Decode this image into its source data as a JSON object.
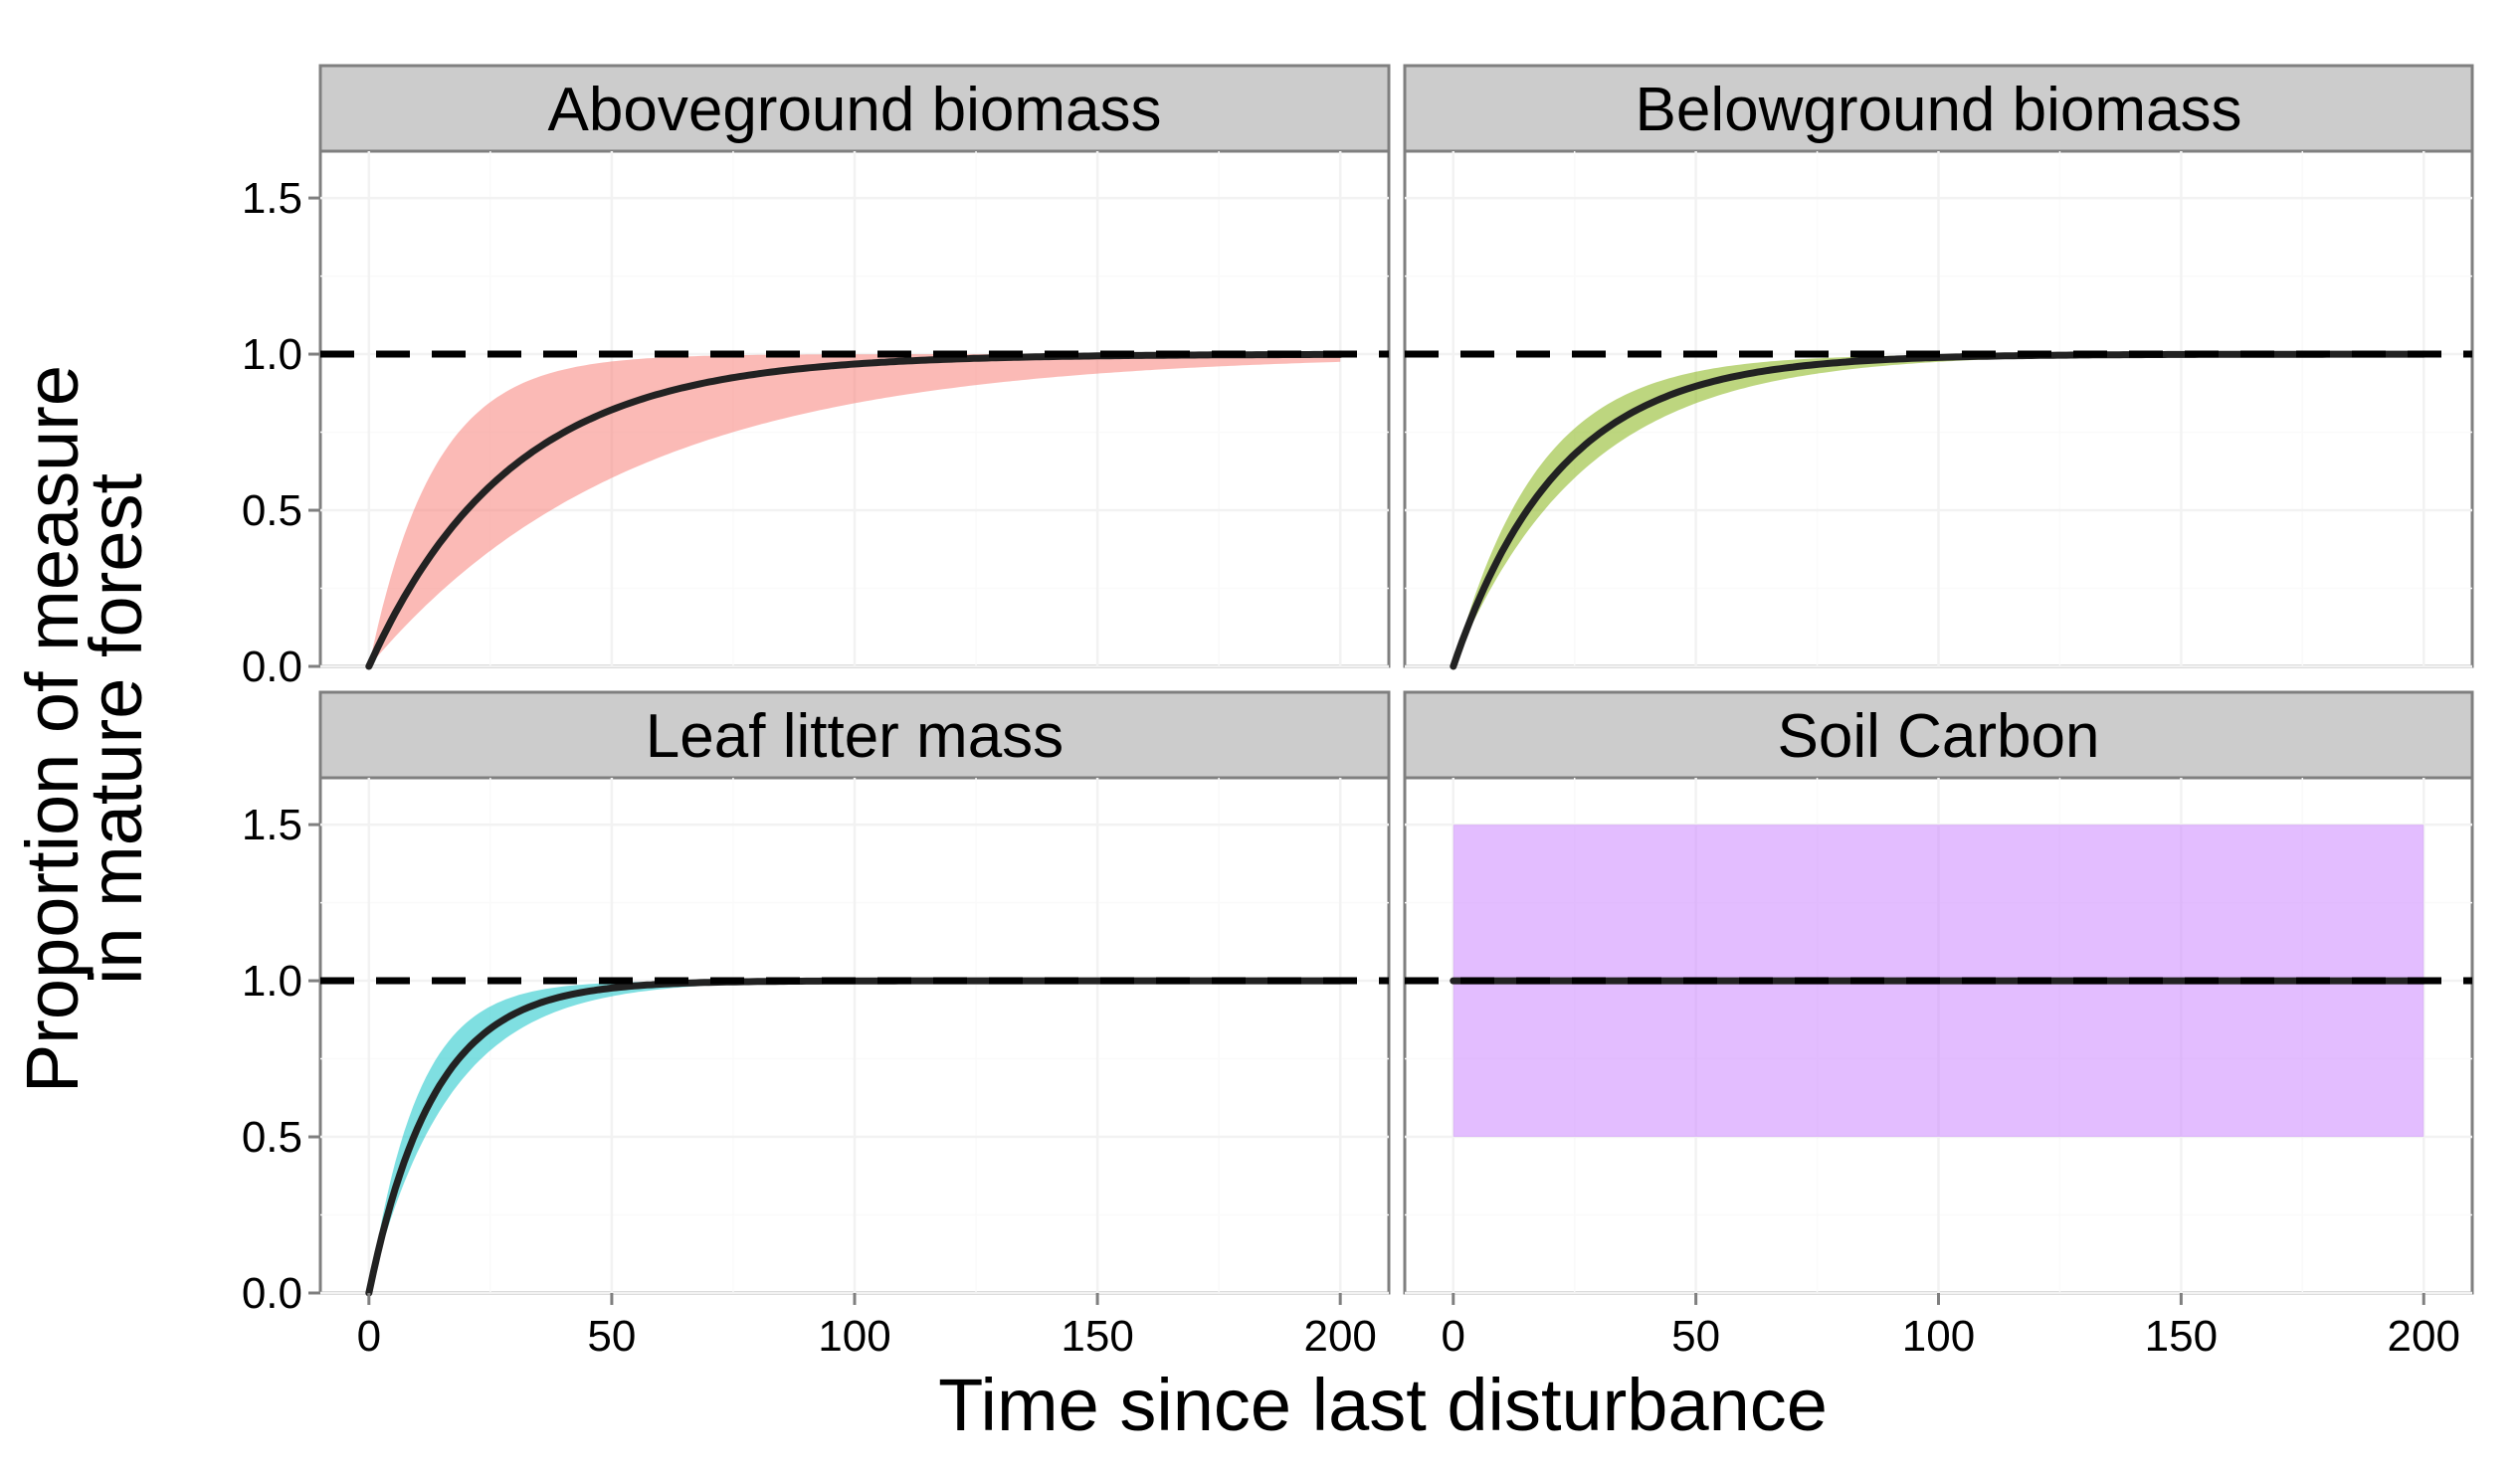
{
  "chart_data": {
    "type": "area",
    "layout": "2x2 facet grid",
    "xlabel": "Time since last disturbance",
    "ylabel_lines": [
      "Proportion of measure",
      "in mature forest"
    ],
    "xlim": [
      -10,
      210
    ],
    "ylim": [
      0,
      1.65
    ],
    "x_ticks": [
      0,
      50,
      100,
      150,
      200
    ],
    "x_tick_labels": [
      "0",
      "50",
      "100",
      "150",
      "200"
    ],
    "y_ticks": [
      0,
      0.5,
      1.0,
      1.5
    ],
    "y_tick_labels": [
      "0.0",
      "0.5",
      "1.0",
      "1.5"
    ],
    "reference_line": {
      "y": 1.0,
      "style": "dashed"
    },
    "facets": [
      {
        "title": "Aboveground biomass",
        "color": "#f8766d",
        "fill_opacity": 0.5,
        "x_domain": [
          0,
          200
        ],
        "kind": "recovery",
        "central_rate": 0.0345,
        "lower_rate": 0.0185,
        "upper_rate": 0.075
      },
      {
        "title": "Belowground biomass",
        "color": "#7cae00",
        "fill_opacity": 0.5,
        "x_domain": [
          0,
          200
        ],
        "kind": "recovery",
        "central_rate": 0.0455,
        "lower_rate": 0.037,
        "upper_rate": 0.0575
      },
      {
        "title": "Leaf litter mass",
        "color": "#00bfc4",
        "fill_opacity": 0.5,
        "x_domain": [
          0,
          200
        ],
        "kind": "recovery",
        "central_rate": 0.075,
        "lower_rate": 0.06,
        "upper_rate": 0.1
      },
      {
        "title": "Soil Carbon",
        "color": "#c77cff",
        "fill_opacity": 0.5,
        "x_domain": [
          0,
          200
        ],
        "kind": "constant",
        "central_value": 1.0,
        "lower_value": 0.5,
        "upper_value": 1.5
      }
    ]
  }
}
